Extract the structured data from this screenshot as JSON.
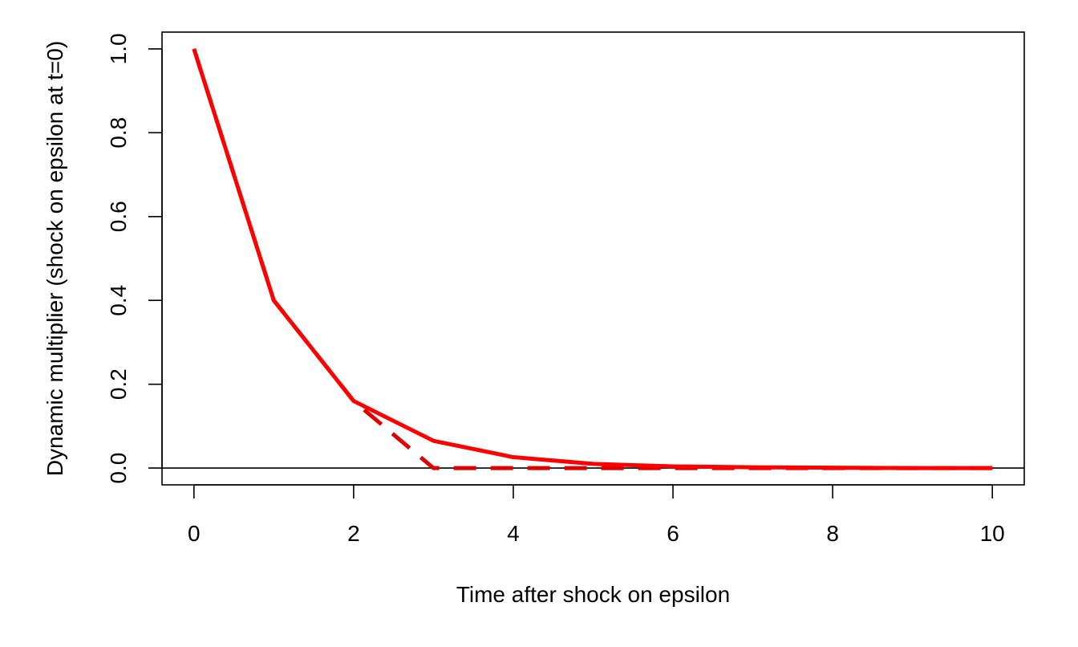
{
  "chart_data": {
    "type": "line",
    "title": "",
    "xlabel": "Time after shock on epsilon",
    "ylabel": "Dynamic multiplier (shock on epsilon at t=0)",
    "xlim": [
      -0.4,
      10.4
    ],
    "ylim": [
      -0.04,
      1.04
    ],
    "x_ticks": [
      0,
      2,
      4,
      6,
      8,
      10
    ],
    "y_ticks": [
      0.0,
      0.2,
      0.4,
      0.6,
      0.8,
      1.0
    ],
    "x_tick_labels": [
      "0",
      "2",
      "4",
      "6",
      "8",
      "10"
    ],
    "y_tick_labels": [
      "0.0",
      "0.2",
      "0.4",
      "0.6",
      "0.8",
      "1.0"
    ],
    "grid": false,
    "legend": "none",
    "hline": 0,
    "series": [
      {
        "style": "solid",
        "color": "#ff0000",
        "x": [
          0,
          1,
          2,
          3,
          4,
          5,
          6,
          7,
          8,
          9,
          10
        ],
        "values": [
          1.0,
          0.4,
          0.16,
          0.065,
          0.026,
          0.01,
          0.004,
          0.002,
          0.001,
          0.0,
          0.0
        ]
      },
      {
        "style": "dashed",
        "color": "#dd0000",
        "x": [
          0,
          1,
          2,
          3,
          4,
          5,
          6,
          7,
          8,
          9,
          10
        ],
        "values": [
          1.0,
          0.4,
          0.16,
          0.0,
          0.0,
          0.0,
          0.0,
          0.0,
          0.0,
          0.0,
          0.0
        ]
      }
    ]
  }
}
